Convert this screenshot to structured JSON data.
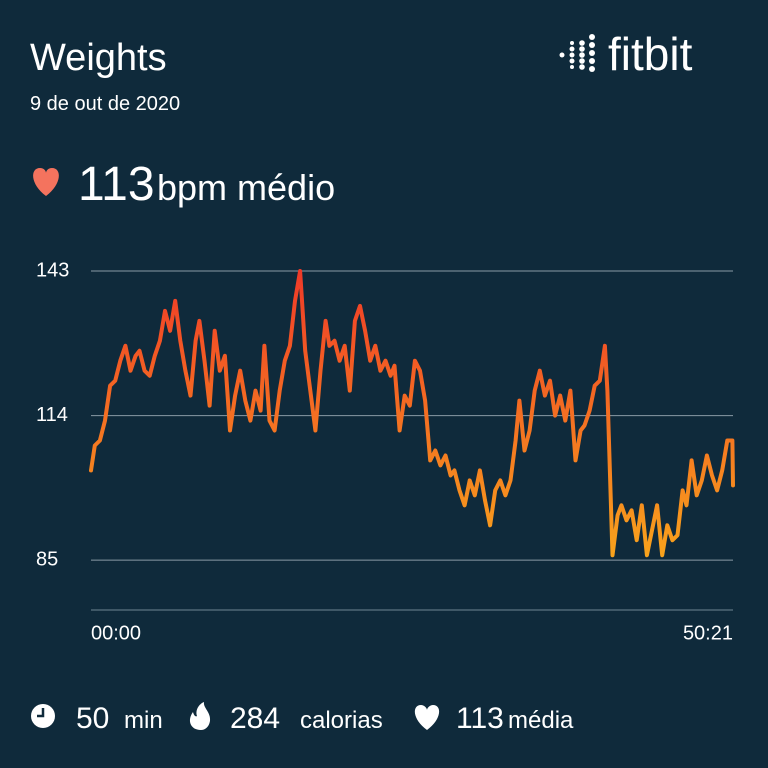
{
  "header": {
    "title": "Weights",
    "date": "9 de out de 2020",
    "logo": "fitbit"
  },
  "summary": {
    "average": "113",
    "unit": "bpm médio"
  },
  "chart_data": {
    "type": "line",
    "xlim": [
      0,
      50.35
    ],
    "xticks": [
      {
        "value": 0,
        "label": "00:00"
      },
      {
        "value": 50.35,
        "label": "50:21"
      }
    ],
    "ylim": [
      75,
      143
    ],
    "yticks": [
      85,
      114,
      143
    ],
    "grid": true,
    "gradient": [
      "#f03a28",
      "#f8a41c"
    ],
    "x": [
      0,
      0.3,
      0.7,
      1.1,
      1.5,
      1.9,
      2.3,
      2.7,
      3.1,
      3.5,
      3.8,
      4.2,
      4.6,
      5.0,
      5.4,
      5.8,
      6.2,
      6.6,
      7.0,
      7.4,
      7.8,
      8.2,
      8.5,
      8.9,
      9.3,
      9.7,
      10.1,
      10.5,
      10.9,
      11.3,
      11.7,
      12.1,
      12.5,
      12.9,
      13.3,
      13.6,
      14.0,
      14.4,
      14.8,
      15.2,
      15.6,
      16.0,
      16.4,
      16.8,
      17.2,
      17.6,
      18.0,
      18.4,
      18.7,
      19.1,
      19.5,
      19.9,
      20.3,
      20.7,
      21.1,
      21.5,
      21.9,
      22.3,
      22.7,
      23.1,
      23.5,
      23.8,
      24.2,
      24.6,
      25.0,
      25.4,
      25.8,
      26.2,
      26.6,
      27.0,
      27.4,
      27.8,
      28.2,
      28.5,
      28.9,
      29.3,
      29.7,
      30.1,
      30.5,
      30.9,
      31.3,
      31.7,
      32.1,
      32.5,
      32.9,
      33.3,
      33.6,
      34.0,
      34.4,
      34.8,
      35.2,
      35.6,
      36.0,
      36.4,
      36.8,
      37.2,
      37.6,
      38.0,
      38.4,
      38.7,
      39.1,
      39.5,
      39.9,
      40.3,
      40.5,
      40.9,
      41.3,
      41.6,
      42.0,
      42.4,
      42.8,
      43.2,
      43.6,
      44.0,
      44.4,
      44.8,
      45.2,
      45.6,
      46.0,
      46.4,
      46.7,
      47.1,
      47.5,
      47.9,
      48.3,
      48.7,
      49.1,
      49.5,
      49.9,
      50.3,
      50.35
    ],
    "series": [
      {
        "values": [
          103,
          108,
          109,
          113,
          120,
          121,
          125,
          128,
          123,
          126,
          127,
          123,
          122,
          126,
          129,
          135,
          131,
          137,
          129,
          123,
          118,
          129,
          133,
          125,
          116,
          131,
          123,
          126,
          111,
          118,
          123,
          117,
          113,
          119,
          115,
          128,
          113,
          111,
          119,
          125,
          128,
          137,
          143,
          127,
          119,
          111,
          123,
          133,
          128,
          129,
          125,
          128,
          119,
          133,
          136,
          131,
          125,
          128,
          123,
          125,
          122,
          124,
          111,
          118,
          116,
          125,
          123,
          117,
          105,
          107,
          104,
          106,
          102,
          103,
          99,
          96,
          101,
          98,
          103,
          97,
          92,
          99,
          101,
          98,
          101,
          109,
          117,
          107,
          111,
          119,
          123,
          118,
          121,
          114,
          118,
          113,
          119,
          105,
          111,
          112,
          115,
          120,
          121,
          128,
          119,
          86,
          94,
          96,
          93,
          95,
          89,
          96,
          86,
          91,
          96,
          86,
          92,
          89,
          90,
          99,
          96,
          105,
          98,
          101,
          106,
          102,
          99,
          103,
          109,
          109,
          100
        ]
      }
    ]
  },
  "footer": {
    "duration": "50",
    "duration_unit": "min",
    "calories": "284",
    "calories_unit": "calorias",
    "average": "113",
    "average_unit": "média"
  }
}
